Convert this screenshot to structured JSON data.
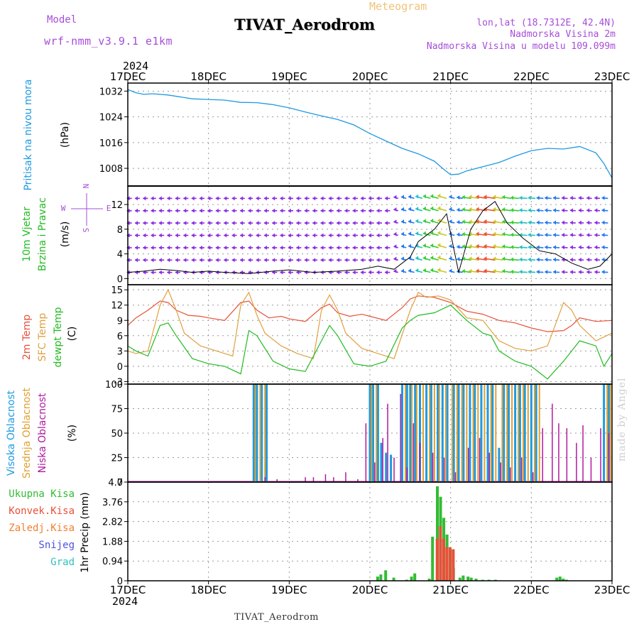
{
  "header": {
    "model_label": "Model",
    "model_name": "wrf-nmm_v3.9.1 e1km",
    "chart_kind": "Meteogram",
    "title": "TIVAT_Aerodrom",
    "location": "lon,lat (18.7312E, 42.4N)",
    "elevation": "Nadmorska Visina 2m",
    "model_elevation": "Nadmorska Visina u modelu 109.099m",
    "year": "2024",
    "footer_station": "TIVAT_Aerodrom",
    "credit": "made by Angel"
  },
  "colors": {
    "pressure": "#1e9ae0",
    "temp2m": "#e8503a",
    "sfc_temp": "#e0a040",
    "dewpoint": "#22bb22",
    "high_cloud": "#1e9ae0",
    "mid_cloud": "#e0a030",
    "low_cloud": "#b01aa0",
    "total_precip": "#33bb33",
    "conv_precip": "#e8503a",
    "frozen_precip": "#f08030",
    "snow": "#5050dd",
    "hail": "#30c0c0",
    "wind_label": "#22bb22",
    "compass": "#a64dd9",
    "pressure_label": "#1e9ae0"
  },
  "chart_data": [
    {
      "type": "line",
      "panel": "pressure",
      "ylabel": [
        "Pritisak na nivou mora",
        "(hPa)"
      ],
      "yticks": [
        1008,
        1016,
        1024,
        1032
      ],
      "ylim": [
        1002.5,
        1034.5
      ],
      "xlim": [
        0,
        6
      ],
      "x_tick_labels": [
        "17DEC",
        "18DEC",
        "19DEC",
        "20DEC",
        "21DEC",
        "22DEC",
        "23DEC"
      ],
      "series": [
        {
          "x": [
            0,
            0.1,
            0.2,
            0.3,
            0.5,
            0.8,
            1.0,
            1.2,
            1.4,
            1.6,
            1.8,
            2.0,
            2.2,
            2.4,
            2.6,
            2.8,
            3.0,
            3.2,
            3.4,
            3.6,
            3.8,
            3.9,
            4.0,
            4.1,
            4.2,
            4.4,
            4.6,
            4.8,
            5.0,
            5.2,
            5.4,
            5.6,
            5.8,
            5.9,
            6.0
          ],
          "values": [
            1032.5,
            1031.5,
            1031.0,
            1031.2,
            1030.8,
            1029.6,
            1029.4,
            1029.2,
            1028.5,
            1028.4,
            1027.8,
            1026.8,
            1025.5,
            1024.3,
            1023.2,
            1021.5,
            1018.8,
            1016.5,
            1014.2,
            1012.5,
            1010.2,
            1008.0,
            1006.0,
            1006.2,
            1007.2,
            1008.5,
            1009.8,
            1011.8,
            1013.5,
            1014.2,
            1014.0,
            1014.8,
            1012.8,
            1009.5,
            1005.0
          ]
        }
      ]
    },
    {
      "type": "line",
      "panel": "wind",
      "ylabel": [
        "10m Vjetar",
        "Brzina i Pravac",
        "(m/s)"
      ],
      "compass": {
        "n": "N",
        "s": "S",
        "e": "E",
        "w": "W"
      },
      "yticks": [
        0,
        4,
        8,
        12
      ],
      "ylim": [
        -1,
        15
      ],
      "series": [
        {
          "name": "speed",
          "x": [
            0,
            0.2,
            0.4,
            0.6,
            0.8,
            1.0,
            1.2,
            1.5,
            1.8,
            2.0,
            2.3,
            2.6,
            2.9,
            3.1,
            3.3,
            3.5,
            3.6,
            3.8,
            3.95,
            4.1,
            4.25,
            4.4,
            4.55,
            4.7,
            4.9,
            5.1,
            5.3,
            5.5,
            5.7,
            5.85,
            6.0
          ],
          "values": [
            1.0,
            1.2,
            1.5,
            1.3,
            1.0,
            1.2,
            1.0,
            0.8,
            1.2,
            1.4,
            1.0,
            1.2,
            1.5,
            2.0,
            1.5,
            3.5,
            6.0,
            8.0,
            10.5,
            1.0,
            8.0,
            11.0,
            12.5,
            9.0,
            6.5,
            4.5,
            4.0,
            2.5,
            1.5,
            2.0,
            4.0
          ]
        }
      ]
    },
    {
      "type": "line",
      "panel": "temperature",
      "ylabel": [
        "2m Temp",
        "SFC Temp",
        "dewpt Temp",
        "(C)"
      ],
      "yticks": [
        -3,
        0,
        3,
        6,
        9,
        12,
        15
      ],
      "ylim": [
        -3.5,
        16
      ],
      "series": [
        {
          "name": "2m Temp",
          "x": [
            0,
            0.1,
            0.25,
            0.4,
            0.5,
            0.6,
            0.75,
            0.9,
            1.0,
            1.2,
            1.4,
            1.5,
            1.6,
            1.75,
            1.9,
            2.0,
            2.2,
            2.4,
            2.5,
            2.6,
            2.75,
            2.9,
            3.0,
            3.2,
            3.4,
            3.5,
            3.6,
            3.8,
            4.0,
            4.2,
            4.4,
            4.6,
            4.8,
            5.0,
            5.2,
            5.4,
            5.5,
            5.6,
            5.8,
            6.0
          ],
          "values": [
            8.0,
            9.5,
            11.0,
            12.8,
            12.5,
            11.0,
            10.0,
            9.8,
            9.5,
            9.0,
            12.5,
            12.8,
            11.0,
            9.5,
            9.8,
            9.3,
            8.8,
            11.5,
            12.2,
            10.5,
            9.8,
            10.2,
            9.8,
            9.0,
            11.5,
            13.2,
            13.8,
            13.5,
            12.5,
            10.8,
            10.2,
            9.0,
            8.5,
            7.5,
            6.8,
            7.0,
            8.0,
            9.5,
            8.8,
            9.0
          ]
        },
        {
          "name": "SFC Temp",
          "x": [
            0,
            0.1,
            0.25,
            0.4,
            0.5,
            0.6,
            0.7,
            0.9,
            1.1,
            1.3,
            1.4,
            1.5,
            1.6,
            1.7,
            1.9,
            2.1,
            2.3,
            2.4,
            2.5,
            2.6,
            2.7,
            2.9,
            3.1,
            3.3,
            3.5,
            3.6,
            3.7,
            3.85,
            4.0,
            4.2,
            4.4,
            4.6,
            4.8,
            5.0,
            5.2,
            5.4,
            5.5,
            5.6,
            5.8,
            6.0
          ],
          "values": [
            3.0,
            2.5,
            3.0,
            12.0,
            15.0,
            11.0,
            6.5,
            4.0,
            3.0,
            2.0,
            12.0,
            14.5,
            10.0,
            6.5,
            4.0,
            2.5,
            1.5,
            11.0,
            14.0,
            11.0,
            6.5,
            3.5,
            2.5,
            1.5,
            11.0,
            14.5,
            13.5,
            13.8,
            13.0,
            9.5,
            9.0,
            5.0,
            3.5,
            3.0,
            4.0,
            12.5,
            11.0,
            8.0,
            5.0,
            6.5
          ]
        },
        {
          "name": "dewpt Temp",
          "x": [
            0,
            0.1,
            0.25,
            0.4,
            0.5,
            0.6,
            0.8,
            1.0,
            1.2,
            1.4,
            1.5,
            1.6,
            1.8,
            2.0,
            2.2,
            2.4,
            2.5,
            2.6,
            2.8,
            3.0,
            3.2,
            3.4,
            3.5,
            3.6,
            3.8,
            4.0,
            4.2,
            4.4,
            4.5,
            4.6,
            4.8,
            5.0,
            5.2,
            5.4,
            5.6,
            5.8,
            5.9,
            6.0
          ],
          "values": [
            4.0,
            3.0,
            2.0,
            8.0,
            8.5,
            6.0,
            1.5,
            0.5,
            0.0,
            -1.5,
            7.0,
            6.0,
            1.0,
            -0.5,
            -1.0,
            5.0,
            8.0,
            6.0,
            0.5,
            0.0,
            1.0,
            7.5,
            9.0,
            10.0,
            10.5,
            12.0,
            9.0,
            6.5,
            6.0,
            3.0,
            1.0,
            0.0,
            -2.5,
            1.0,
            5.0,
            4.0,
            0.0,
            2.5
          ]
        }
      ]
    },
    {
      "type": "bar",
      "panel": "clouds",
      "ylabel": [
        "Visoka Oblacnost",
        "Srednja Oblacnost",
        "Niska Oblacnost",
        "(%)"
      ],
      "yticks": [
        0,
        25,
        50,
        75,
        100
      ],
      "ylim": [
        0,
        100
      ],
      "series": [
        {
          "name": "Visoka Oblacnost",
          "x": [
            1.56,
            1.6,
            1.66,
            1.72,
            3.0,
            3.04,
            3.1,
            3.14,
            3.2,
            3.26,
            3.4,
            3.46,
            3.5,
            3.56,
            3.62,
            3.7,
            3.76,
            3.84,
            3.9,
            3.96,
            4.04,
            4.1,
            4.16,
            4.24,
            4.3,
            4.38,
            4.46,
            4.52,
            4.6,
            4.66,
            4.72,
            4.8,
            4.86,
            4.92,
            5.0,
            5.06,
            5.9,
            5.96
          ],
          "values": [
            100,
            100,
            100,
            100,
            100,
            100,
            100,
            40,
            30,
            28,
            100,
            100,
            100,
            100,
            100,
            100,
            100,
            100,
            100,
            100,
            100,
            100,
            100,
            100,
            100,
            100,
            100,
            100,
            35,
            100,
            100,
            100,
            100,
            100,
            100,
            100,
            100,
            100
          ]
        },
        {
          "name": "Srednja Oblacnost",
          "x": [
            1.58,
            1.64,
            1.7,
            3.02,
            3.08,
            3.44,
            3.52,
            3.58,
            3.66,
            3.74,
            3.8,
            3.86,
            3.94,
            4.02,
            4.08,
            4.14,
            4.2,
            4.28,
            4.34,
            4.42,
            4.5,
            4.56,
            4.64,
            4.7,
            4.76,
            4.84,
            4.9,
            4.96,
            5.04,
            5.1,
            5.94,
            5.98
          ],
          "values": [
            100,
            100,
            100,
            100,
            100,
            100,
            100,
            100,
            100,
            100,
            100,
            100,
            100,
            100,
            100,
            100,
            100,
            100,
            100,
            100,
            100,
            100,
            100,
            100,
            100,
            100,
            100,
            100,
            100,
            100,
            100,
            100
          ]
        },
        {
          "name": "Niska Oblacnost",
          "x": [
            1.7,
            1.85,
            2.2,
            2.3,
            2.45,
            2.55,
            2.7,
            2.85,
            2.95,
            3.06,
            3.16,
            3.22,
            3.3,
            3.38,
            3.46,
            3.54,
            3.62,
            3.78,
            3.92,
            4.06,
            4.22,
            4.36,
            4.48,
            4.62,
            4.74,
            4.88,
            5.02,
            5.14,
            5.26,
            5.34,
            5.44,
            5.56,
            5.64,
            5.74,
            5.86,
            5.96
          ],
          "values": [
            5,
            3,
            5,
            5,
            8,
            5,
            10,
            3,
            60,
            20,
            45,
            80,
            25,
            90,
            15,
            60,
            40,
            30,
            25,
            10,
            35,
            45,
            30,
            20,
            15,
            25,
            10,
            55,
            80,
            60,
            55,
            40,
            58,
            25,
            55,
            50
          ]
        }
      ]
    },
    {
      "type": "bar",
      "panel": "precip",
      "ylabel": [
        "1hr Precip (mm)"
      ],
      "yticks": [
        0,
        0.94,
        1.88,
        2.82,
        3.76,
        4.7
      ],
      "ylim": [
        0,
        4.7
      ],
      "legend": [
        "Ukupna Kisa",
        "Konvek.Kisa",
        "Zaledj.Kisa",
        "Snijeg",
        "Grad"
      ],
      "series": [
        {
          "name": "Ukupna Kisa",
          "x": [
            3.1,
            3.14,
            3.2,
            3.3,
            3.46,
            3.52,
            3.56,
            3.74,
            3.78,
            3.84,
            3.88,
            3.92,
            3.96,
            4.0,
            4.04,
            4.12,
            4.16,
            4.22,
            4.26,
            4.32,
            4.4,
            4.48,
            4.56,
            5.32,
            5.36,
            5.4,
            5.44
          ],
          "values": [
            0.2,
            0.3,
            0.5,
            0.15,
            0.05,
            0.2,
            0.35,
            0.1,
            2.1,
            4.5,
            4.0,
            3.0,
            2.2,
            1.5,
            0.6,
            0.15,
            0.25,
            0.2,
            0.15,
            0.1,
            0.05,
            0.05,
            0.05,
            0.15,
            0.2,
            0.1,
            0.05
          ]
        },
        {
          "name": "Konvek.Kisa",
          "x": [
            3.82,
            3.86,
            3.9,
            3.94,
            3.98,
            4.02
          ],
          "values": [
            2.0,
            2.6,
            2.0,
            1.6,
            1.6,
            1.5
          ]
        }
      ]
    }
  ]
}
